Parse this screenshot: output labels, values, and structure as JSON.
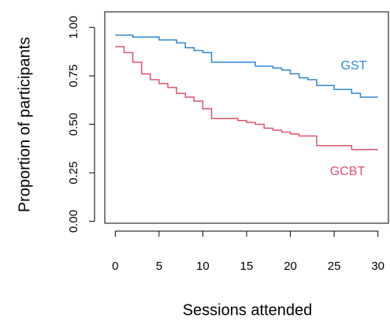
{
  "chart_data": {
    "type": "step",
    "x_label": "Sessions attended",
    "y_label": "Proportion of participants",
    "xlim": [
      -1.2,
      31.2
    ],
    "ylim": [
      -0.01,
      1.08
    ],
    "xticks": [
      0,
      5,
      10,
      15,
      20,
      25,
      30
    ],
    "yticks": [
      {
        "value": 0,
        "label": "0.00"
      },
      0.25,
      {
        "value": 0.5,
        "label": "0.50"
      },
      0.75,
      {
        "value": 1,
        "label": "1.00"
      }
    ],
    "grid": false,
    "series": [
      {
        "name": "GST",
        "color": "#2f86d6",
        "x": [
          0,
          2,
          5,
          7,
          8,
          9,
          10,
          11,
          16,
          18,
          19,
          20,
          21,
          22,
          23,
          25,
          27,
          28,
          30
        ],
        "values": [
          0.96,
          0.95,
          0.935,
          0.92,
          0.895,
          0.88,
          0.87,
          0.82,
          0.8,
          0.79,
          0.78,
          0.76,
          0.74,
          0.73,
          0.7,
          0.68,
          0.66,
          0.64,
          0.64
        ]
      },
      {
        "name": "GCBT",
        "color": "#df536b",
        "x": [
          0,
          1,
          2,
          3,
          4,
          5,
          6,
          7,
          8,
          9,
          10,
          11,
          14,
          15,
          16,
          17,
          18,
          19,
          20,
          21,
          23,
          27,
          30
        ],
        "values": [
          0.9,
          0.87,
          0.82,
          0.76,
          0.73,
          0.71,
          0.69,
          0.66,
          0.64,
          0.62,
          0.58,
          0.53,
          0.52,
          0.51,
          0.5,
          0.48,
          0.47,
          0.46,
          0.45,
          0.44,
          0.39,
          0.37,
          0.37
        ]
      }
    ]
  }
}
